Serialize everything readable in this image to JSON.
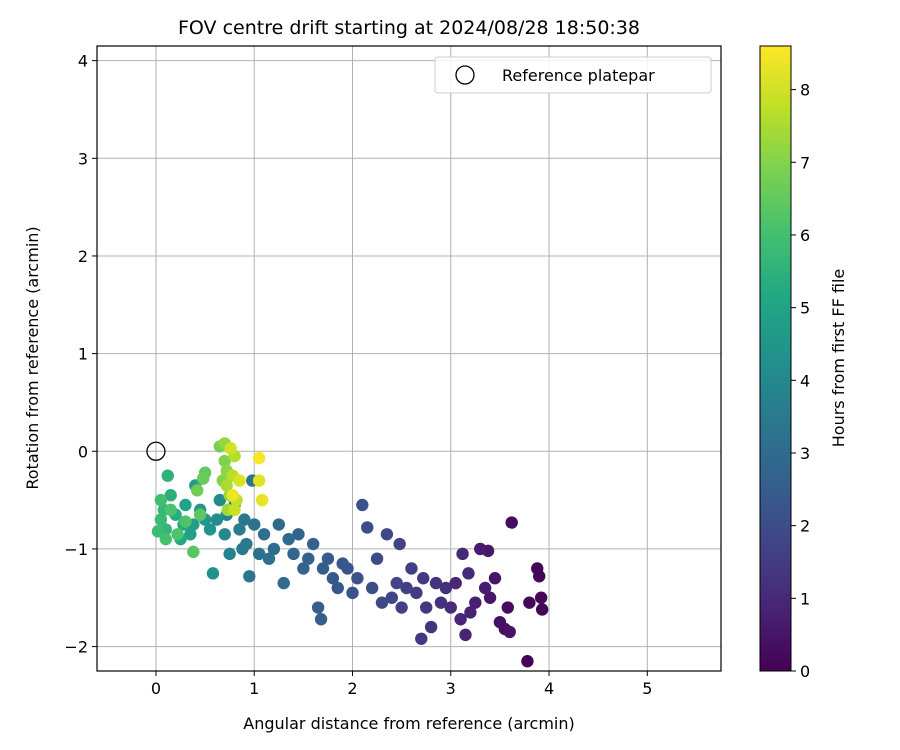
{
  "chart_data": {
    "type": "scatter",
    "title": "FOV centre drift starting at 2024/08/28 18:50:38",
    "xlabel": "Angular distance from reference (arcmin)",
    "ylabel": "Rotation from reference (arcmin)",
    "xlim": [
      -0.6,
      5.75
    ],
    "ylim": [
      -2.25,
      4.15
    ],
    "xticks": [
      0,
      1,
      2,
      3,
      4,
      5
    ],
    "yticks": [
      -2,
      -1,
      0,
      1,
      2,
      3,
      4
    ],
    "grid": true,
    "legend": {
      "placement": "top-right",
      "entries": [
        "Reference platepar"
      ]
    },
    "reference_point": {
      "name": "Reference platepar",
      "x": 0,
      "y": 0,
      "marker": "hollow-circle"
    },
    "colorbar": {
      "label": "Hours from first FF file",
      "colormap": "viridis",
      "range": [
        0,
        8.6
      ],
      "ticks": [
        0,
        1,
        2,
        3,
        4,
        5,
        6,
        7,
        8
      ]
    },
    "points": [
      [
        3.78,
        -2.15,
        0.05
      ],
      [
        3.93,
        -1.62,
        0.1
      ],
      [
        3.88,
        -1.2,
        0.12
      ],
      [
        3.9,
        -1.28,
        0.15
      ],
      [
        3.92,
        -1.5,
        0.18
      ],
      [
        3.8,
        -1.55,
        0.2
      ],
      [
        3.62,
        -0.73,
        0.25
      ],
      [
        3.58,
        -1.6,
        0.3
      ],
      [
        3.55,
        -1.82,
        0.35
      ],
      [
        3.5,
        -1.75,
        0.4
      ],
      [
        3.6,
        -1.85,
        0.45
      ],
      [
        3.45,
        -1.3,
        0.5
      ],
      [
        3.4,
        -1.5,
        0.55
      ],
      [
        3.38,
        -1.02,
        0.6
      ],
      [
        3.3,
        -1.0,
        0.65
      ],
      [
        3.35,
        -1.4,
        0.7
      ],
      [
        3.25,
        -1.55,
        0.75
      ],
      [
        3.2,
        -1.65,
        0.8
      ],
      [
        3.15,
        -1.88,
        0.85
      ],
      [
        3.1,
        -1.72,
        0.9
      ],
      [
        3.05,
        -1.35,
        0.95
      ],
      [
        3.12,
        -1.05,
        1.0
      ],
      [
        3.18,
        -1.25,
        1.05
      ],
      [
        3.0,
        -1.6,
        1.1
      ],
      [
        2.95,
        -1.4,
        1.15
      ],
      [
        2.9,
        -1.55,
        1.2
      ],
      [
        2.85,
        -1.35,
        1.25
      ],
      [
        2.8,
        -1.8,
        1.3
      ],
      [
        2.75,
        -1.6,
        1.35
      ],
      [
        2.7,
        -1.92,
        1.4
      ],
      [
        2.72,
        -1.3,
        1.45
      ],
      [
        2.65,
        -1.45,
        1.5
      ],
      [
        2.6,
        -1.2,
        1.55
      ],
      [
        2.55,
        -1.4,
        1.6
      ],
      [
        2.5,
        -1.6,
        1.65
      ],
      [
        2.48,
        -0.95,
        1.7
      ],
      [
        2.45,
        -1.35,
        1.75
      ],
      [
        2.4,
        -1.5,
        1.8
      ],
      [
        2.35,
        -0.85,
        1.85
      ],
      [
        2.3,
        -1.55,
        1.9
      ],
      [
        2.25,
        -1.1,
        1.95
      ],
      [
        2.2,
        -1.4,
        2.0
      ],
      [
        2.15,
        -0.78,
        2.05
      ],
      [
        2.1,
        -0.55,
        2.1
      ],
      [
        2.05,
        -1.3,
        2.15
      ],
      [
        2.0,
        -1.45,
        2.2
      ],
      [
        1.95,
        -1.2,
        2.25
      ],
      [
        1.9,
        -1.15,
        2.3
      ],
      [
        1.85,
        -1.4,
        2.35
      ],
      [
        1.8,
        -1.3,
        2.4
      ],
      [
        1.75,
        -1.1,
        2.45
      ],
      [
        1.7,
        -1.2,
        2.5
      ],
      [
        1.65,
        -1.6,
        2.55
      ],
      [
        1.68,
        -1.72,
        2.6
      ],
      [
        1.6,
        -0.95,
        2.65
      ],
      [
        1.55,
        -1.1,
        2.7
      ],
      [
        1.5,
        -1.2,
        2.75
      ],
      [
        1.45,
        -0.85,
        2.8
      ],
      [
        1.4,
        -1.05,
        2.85
      ],
      [
        1.35,
        -0.9,
        2.9
      ],
      [
        1.3,
        -1.35,
        2.95
      ],
      [
        1.25,
        -0.75,
        3.0
      ],
      [
        1.2,
        -1.0,
        3.05
      ],
      [
        1.15,
        -1.1,
        3.1
      ],
      [
        1.1,
        -0.85,
        3.15
      ],
      [
        1.05,
        -1.05,
        3.2
      ],
      [
        1.0,
        -0.75,
        3.25
      ],
      [
        0.98,
        -0.3,
        3.3
      ],
      [
        0.95,
        -1.28,
        3.35
      ],
      [
        0.92,
        -0.95,
        3.4
      ],
      [
        0.9,
        -0.7,
        3.45
      ],
      [
        0.88,
        -1.0,
        3.5
      ],
      [
        0.85,
        -0.8,
        3.6
      ],
      [
        0.8,
        -0.55,
        3.7
      ],
      [
        0.75,
        -1.05,
        3.8
      ],
      [
        0.72,
        -0.65,
        3.9
      ],
      [
        0.7,
        -0.85,
        4.0
      ],
      [
        0.65,
        -0.5,
        4.1
      ],
      [
        0.62,
        -0.7,
        4.2
      ],
      [
        0.58,
        -1.25,
        4.3
      ],
      [
        0.55,
        -0.8,
        4.4
      ],
      [
        0.5,
        -0.7,
        4.5
      ],
      [
        0.45,
        -0.6,
        4.6
      ],
      [
        0.4,
        -0.35,
        4.7
      ],
      [
        0.38,
        -0.75,
        4.8
      ],
      [
        0.35,
        -0.85,
        4.9
      ],
      [
        0.3,
        -0.55,
        5.0
      ],
      [
        0.28,
        -0.75,
        5.1
      ],
      [
        0.25,
        -0.9,
        5.2
      ],
      [
        0.2,
        -0.65,
        5.3
      ],
      [
        0.15,
        -0.45,
        5.4
      ],
      [
        0.12,
        -0.25,
        5.5
      ],
      [
        0.1,
        -0.8,
        5.6
      ],
      [
        0.08,
        -0.6,
        5.7
      ],
      [
        0.05,
        -0.7,
        5.8
      ],
      [
        0.02,
        -0.82,
        5.9
      ],
      [
        0.05,
        -0.5,
        6.0
      ],
      [
        0.1,
        -0.9,
        6.05
      ],
      [
        0.15,
        -0.6,
        6.1
      ],
      [
        0.22,
        -0.85,
        6.15
      ],
      [
        0.3,
        -0.72,
        6.2
      ],
      [
        0.38,
        -1.03,
        6.3
      ],
      [
        0.45,
        -0.65,
        6.4
      ],
      [
        0.5,
        -0.22,
        6.5
      ],
      [
        0.48,
        -0.28,
        6.6
      ],
      [
        0.42,
        -0.4,
        6.7
      ],
      [
        0.65,
        0.05,
        6.8
      ],
      [
        0.7,
        -0.1,
        6.9
      ],
      [
        0.68,
        -0.3,
        7.0
      ],
      [
        0.72,
        -0.2,
        7.1
      ],
      [
        0.7,
        0.08,
        7.2
      ],
      [
        0.75,
        -0.45,
        7.3
      ],
      [
        0.73,
        -0.6,
        7.4
      ],
      [
        0.72,
        -0.35,
        7.5
      ],
      [
        0.8,
        -0.05,
        7.6
      ],
      [
        0.78,
        -0.25,
        7.7
      ],
      [
        0.82,
        -0.5,
        7.8
      ],
      [
        0.8,
        -0.6,
        7.9
      ],
      [
        0.76,
        0.03,
        8.0
      ],
      [
        0.85,
        -0.3,
        8.1
      ],
      [
        1.05,
        -0.3,
        8.2
      ],
      [
        1.08,
        -0.5,
        8.3
      ],
      [
        0.78,
        -0.45,
        8.4
      ],
      [
        1.05,
        -0.07,
        8.5
      ]
    ]
  }
}
